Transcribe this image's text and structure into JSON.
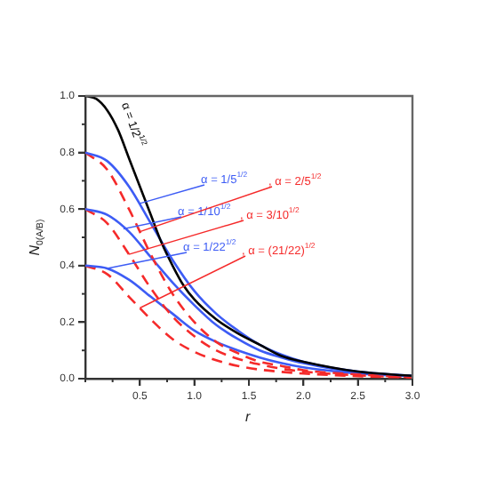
{
  "chart_data": {
    "type": "line",
    "xlabel": "r",
    "ylabel": "N$_{0(A/B)}$",
    "xlim": [
      0,
      3
    ],
    "ylim": [
      0,
      1
    ],
    "xticks": [
      0.5,
      {
        "value": 1,
        "label": "1.0"
      },
      1.5,
      {
        "value": 2,
        "label": "2.0"
      },
      2.5,
      {
        "value": 3,
        "label": "3.0"
      }
    ],
    "yticks": [
      {
        "value": 0,
        "label": "0.0"
      },
      0.2,
      0.4,
      0.6,
      0.8,
      {
        "value": 1,
        "label": "1.0"
      }
    ],
    "grid": false,
    "legend": false,
    "marker": "none",
    "x": [
      0,
      0.2,
      0.4,
      0.6,
      0.8,
      1.0,
      1.2,
      1.4,
      1.6,
      1.8,
      2.0,
      2.5,
      3.0
    ],
    "series": [
      {
        "color": "#000000",
        "line_style": "solid",
        "x": [
          0,
          0.1,
          0.2,
          0.3,
          0.4,
          0.5,
          0.6,
          0.7,
          0.8,
          0.9,
          1.0,
          1.2,
          1.4,
          1.6,
          1.8,
          2.0,
          2.5,
          3.0
        ],
        "values": [
          1.0,
          0.99,
          0.95,
          0.88,
          0.78,
          0.68,
          0.58,
          0.48,
          0.4,
          0.33,
          0.28,
          0.21,
          0.16,
          0.12,
          0.08,
          0.06,
          0.025,
          0.01
        ]
      },
      {
        "color": "#3d5cf5",
        "line_style": "solid",
        "values": [
          0.8,
          0.77,
          0.68,
          0.55,
          0.42,
          0.31,
          0.23,
          0.17,
          0.12,
          0.085,
          0.06,
          0.025,
          0.01
        ]
      },
      {
        "color": "#f52a2a",
        "line_style": "dashed",
        "values": [
          0.8,
          0.74,
          0.6,
          0.44,
          0.3,
          0.2,
          0.13,
          0.09,
          0.06,
          0.045,
          0.03,
          0.015,
          0.005
        ]
      },
      {
        "color": "#3d5cf5",
        "line_style": "solid",
        "values": [
          0.6,
          0.58,
          0.52,
          0.43,
          0.34,
          0.26,
          0.19,
          0.14,
          0.1,
          0.075,
          0.055,
          0.022,
          0.01
        ]
      },
      {
        "color": "#f52a2a",
        "line_style": "dashed",
        "values": [
          0.6,
          0.55,
          0.44,
          0.32,
          0.22,
          0.15,
          0.1,
          0.07,
          0.05,
          0.035,
          0.025,
          0.012,
          0.005
        ]
      },
      {
        "color": "#3d5cf5",
        "line_style": "solid",
        "values": [
          0.4,
          0.39,
          0.35,
          0.29,
          0.23,
          0.17,
          0.13,
          0.1,
          0.075,
          0.055,
          0.04,
          0.018,
          0.008
        ]
      },
      {
        "color": "#f52a2a",
        "line_style": "dashed",
        "values": [
          0.4,
          0.37,
          0.29,
          0.21,
          0.14,
          0.095,
          0.065,
          0.045,
          0.032,
          0.024,
          0.018,
          0.009,
          0.004
        ]
      }
    ],
    "annotations": [
      "α = 1/2$^{1/2}$",
      {
        "text": "α = 1/5$^{1/2}$",
        "x": 0.5,
        "y": 0.62
      },
      {
        "text": ", α = 2/5$^{1/2}$",
        "x": 0.5,
        "y": 0.52
      },
      {
        "text": "α = 1/10$^{1/2}$",
        "x": 0.35,
        "y": 0.53
      },
      {
        "text": ", α = 3/10$^{1/2}$",
        "x": 0.4,
        "y": 0.44
      },
      {
        "text": "α = 1/22$^{1/2}$",
        "x": 0.2,
        "y": 0.39
      },
      {
        "text": ", α = (21/22)$^{1/2}$",
        "x": 0.5,
        "y": 0.25
      }
    ]
  }
}
